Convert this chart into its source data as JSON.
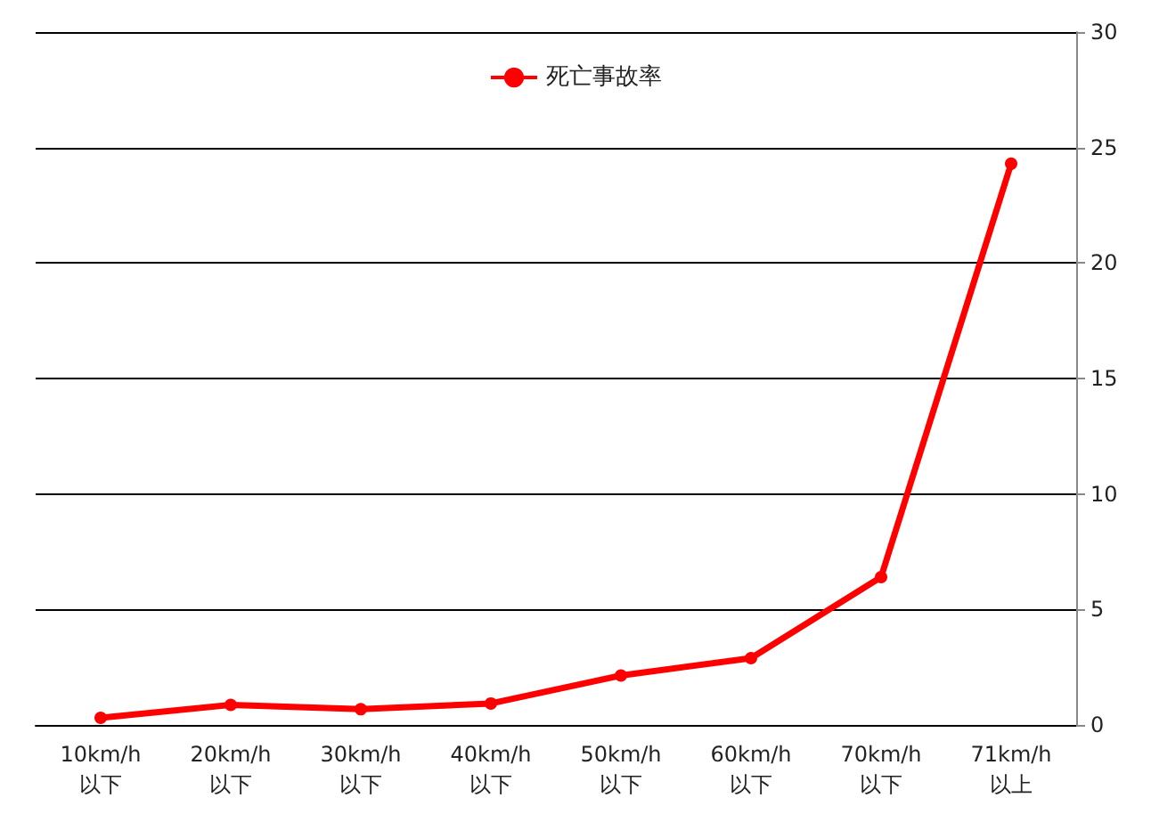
{
  "chart_data": {
    "type": "line",
    "categories": [
      "10km/h\n以下",
      "20km/h\n以下",
      "30km/h\n以下",
      "40km/h\n以下",
      "50km/h\n以下",
      "60km/h\n以下",
      "70km/h\n以下",
      "71km/h\n以上"
    ],
    "series": [
      {
        "name": "死亡事故率",
        "color": "#ff0000",
        "values": [
          0.31,
          0.87,
          0.68,
          0.93,
          2.14,
          2.89,
          6.4,
          24.3
        ]
      }
    ],
    "ylim": [
      0,
      30
    ],
    "yticks": [
      0,
      5,
      10,
      15,
      20,
      25,
      30
    ],
    "grid": "y",
    "legend": "top",
    "marker": "circle",
    "line_style": "solid"
  }
}
